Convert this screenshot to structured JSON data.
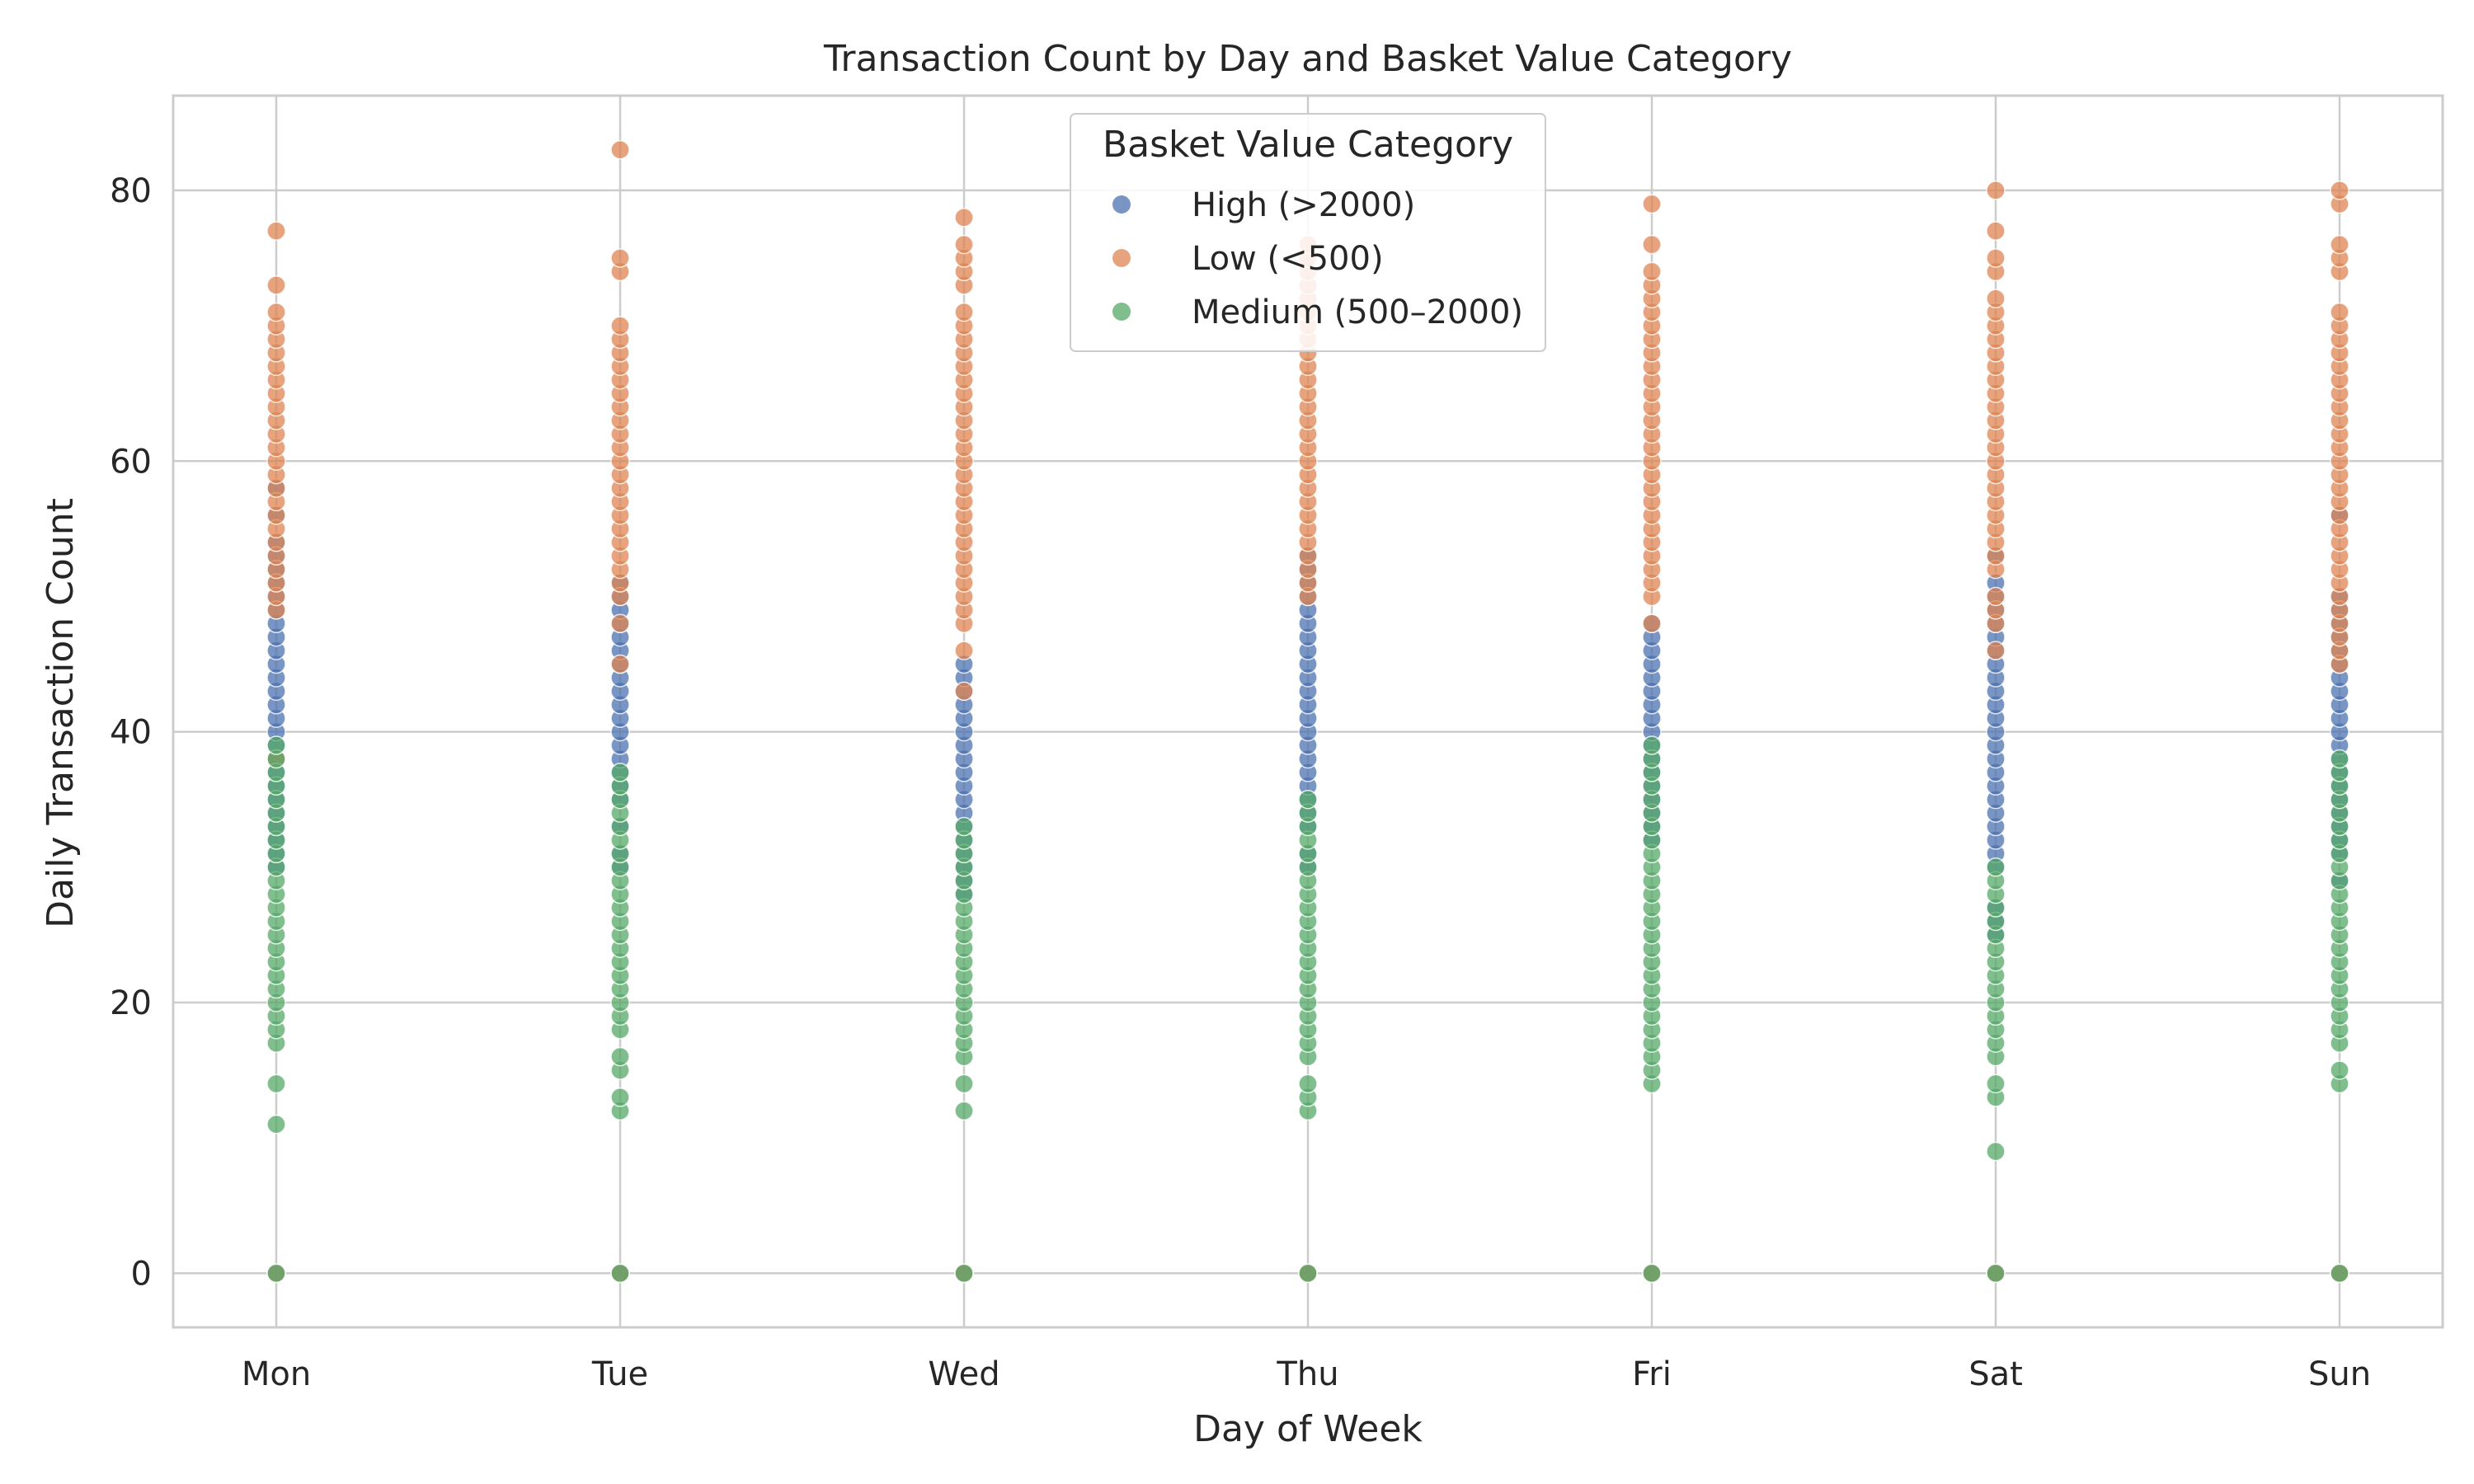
{
  "chart_data": {
    "type": "scatter",
    "title": "Transaction Count by Day and Basket Value Category",
    "xlabel": "Day of Week",
    "ylabel": "Daily Transaction Count",
    "categories": [
      "Mon",
      "Tue",
      "Wed",
      "Thu",
      "Fri",
      "Sat",
      "Sun"
    ],
    "yticks": [
      "0",
      "20",
      "40",
      "60",
      "80"
    ],
    "ylim": [
      -4,
      87
    ],
    "grid": true,
    "legend": {
      "title": "Basket Value Category",
      "position": "top-center"
    },
    "series": [
      {
        "name": "High (>2000)",
        "color": "#4c72b0",
        "points": {
          "Mon": [
            0,
            30,
            31,
            32,
            33,
            34,
            35,
            36,
            37,
            38,
            39,
            40,
            41,
            42,
            43,
            44,
            45,
            46,
            47,
            48,
            49,
            50,
            51,
            52,
            53,
            54,
            56,
            58
          ],
          "Tue": [
            0,
            30,
            31,
            33,
            35,
            36,
            37,
            38,
            39,
            40,
            41,
            42,
            43,
            44,
            45,
            46,
            47,
            48,
            49,
            50,
            51
          ],
          "Wed": [
            0,
            28,
            29,
            30,
            31,
            32,
            33,
            34,
            35,
            36,
            37,
            38,
            39,
            40,
            41,
            42,
            43,
            44,
            45
          ],
          "Thu": [
            0,
            30,
            31,
            33,
            34,
            35,
            36,
            37,
            38,
            39,
            40,
            41,
            42,
            43,
            44,
            45,
            46,
            47,
            48,
            49,
            50,
            51,
            52,
            53
          ],
          "Fri": [
            0,
            32,
            33,
            34,
            35,
            36,
            37,
            38,
            39,
            40,
            41,
            42,
            43,
            44,
            45,
            46,
            47,
            48
          ],
          "Sat": [
            0,
            25,
            26,
            27,
            30,
            31,
            32,
            33,
            34,
            35,
            36,
            37,
            38,
            39,
            40,
            41,
            42,
            43,
            44,
            45,
            46,
            47,
            48,
            49,
            50,
            51,
            53
          ],
          "Sun": [
            0,
            29,
            31,
            32,
            33,
            34,
            35,
            36,
            37,
            38,
            39,
            40,
            41,
            42,
            43,
            44,
            45,
            46,
            47,
            48,
            49,
            50,
            56
          ]
        }
      },
      {
        "name": "Low (<500)",
        "color": "#dd8452",
        "points": {
          "Mon": [
            0,
            38,
            49,
            50,
            51,
            52,
            53,
            54,
            55,
            56,
            57,
            58,
            59,
            60,
            61,
            62,
            63,
            64,
            65,
            66,
            67,
            68,
            69,
            70,
            71,
            73,
            77
          ],
          "Tue": [
            0,
            45,
            48,
            50,
            51,
            52,
            53,
            54,
            55,
            56,
            57,
            58,
            59,
            60,
            61,
            62,
            63,
            64,
            65,
            66,
            67,
            68,
            69,
            70,
            74,
            75,
            83
          ],
          "Wed": [
            0,
            43,
            46,
            48,
            49,
            50,
            51,
            52,
            53,
            54,
            55,
            56,
            57,
            58,
            59,
            60,
            61,
            62,
            63,
            64,
            65,
            66,
            67,
            68,
            69,
            70,
            71,
            73,
            74,
            75,
            76,
            78
          ],
          "Thu": [
            0,
            50,
            51,
            52,
            53,
            54,
            55,
            56,
            57,
            58,
            59,
            60,
            61,
            62,
            63,
            64,
            65,
            66,
            67,
            68,
            69,
            70,
            71,
            72,
            73,
            74,
            75,
            76
          ],
          "Fri": [
            0,
            48,
            50,
            51,
            52,
            53,
            54,
            55,
            56,
            57,
            58,
            59,
            60,
            61,
            62,
            63,
            64,
            65,
            66,
            67,
            68,
            69,
            70,
            71,
            72,
            73,
            74,
            76,
            79
          ],
          "Sat": [
            0,
            46,
            48,
            49,
            50,
            52,
            53,
            54,
            55,
            56,
            57,
            58,
            59,
            60,
            61,
            62,
            63,
            64,
            65,
            66,
            67,
            68,
            69,
            70,
            71,
            72,
            74,
            75,
            77,
            80
          ],
          "Sun": [
            0,
            45,
            46,
            47,
            48,
            49,
            50,
            51,
            52,
            53,
            54,
            55,
            56,
            57,
            58,
            59,
            60,
            61,
            62,
            63,
            64,
            65,
            66,
            67,
            68,
            69,
            70,
            71,
            74,
            75,
            76,
            79,
            80
          ]
        }
      },
      {
        "name": "Medium (500–2000)",
        "color": "#55a868",
        "points": {
          "Mon": [
            0,
            11,
            14,
            17,
            18,
            19,
            20,
            21,
            22,
            23,
            24,
            25,
            26,
            27,
            28,
            29,
            30,
            31,
            32,
            33,
            34,
            35,
            36,
            37,
            38,
            39
          ],
          "Tue": [
            0,
            12,
            13,
            15,
            16,
            18,
            19,
            20,
            21,
            22,
            23,
            24,
            25,
            26,
            27,
            28,
            29,
            30,
            31,
            32,
            33,
            34,
            35,
            36,
            37
          ],
          "Wed": [
            0,
            12,
            14,
            16,
            17,
            18,
            19,
            20,
            21,
            22,
            23,
            24,
            25,
            26,
            27,
            28,
            29,
            30,
            31,
            32,
            33
          ],
          "Thu": [
            0,
            12,
            13,
            14,
            16,
            17,
            18,
            19,
            20,
            21,
            22,
            23,
            24,
            25,
            26,
            27,
            28,
            29,
            30,
            31,
            32,
            33,
            34,
            35
          ],
          "Fri": [
            0,
            14,
            15,
            16,
            17,
            18,
            19,
            20,
            21,
            22,
            23,
            24,
            25,
            26,
            27,
            28,
            29,
            30,
            31,
            32,
            33,
            34,
            35,
            36,
            37,
            38,
            39
          ],
          "Sat": [
            0,
            9,
            13,
            14,
            16,
            17,
            18,
            19,
            20,
            21,
            22,
            23,
            24,
            25,
            26,
            27,
            28,
            29,
            30
          ],
          "Sun": [
            0,
            14,
            15,
            17,
            18,
            19,
            20,
            21,
            22,
            23,
            24,
            25,
            26,
            27,
            28,
            29,
            30,
            31,
            32,
            33,
            34,
            35,
            36,
            37,
            38
          ]
        }
      }
    ]
  }
}
